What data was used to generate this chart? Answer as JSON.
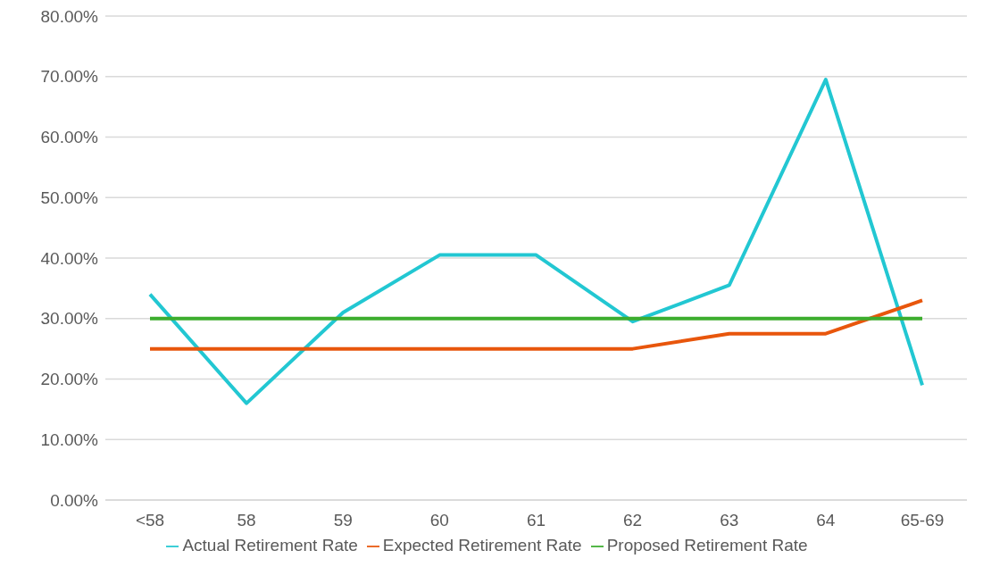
{
  "chart_data": {
    "type": "line",
    "categories": [
      "<58",
      "58",
      "59",
      "60",
      "61",
      "62",
      "63",
      "64",
      "65-69"
    ],
    "series": [
      {
        "name": "Actual Retirement Rate",
        "color": "#22c7d2",
        "values": [
          34,
          16,
          31,
          40.5,
          40.5,
          29.5,
          35.5,
          69.5,
          19
        ]
      },
      {
        "name": "Expected Retirement Rate",
        "color": "#e8560c",
        "values": [
          25,
          25,
          25,
          25,
          25,
          25,
          27.5,
          27.5,
          33
        ]
      },
      {
        "name": "Proposed Retirement Rate",
        "color": "#3cad2e",
        "values": [
          30,
          30,
          30,
          30,
          30,
          30,
          30,
          30,
          30
        ]
      }
    ],
    "ylim": [
      0,
      80
    ],
    "yticks": [
      {
        "value": 0,
        "label": "0.00%"
      },
      {
        "value": 10,
        "label": "10.00%"
      },
      {
        "value": 20,
        "label": "20.00%"
      },
      {
        "value": 30,
        "label": "30.00%"
      },
      {
        "value": 40,
        "label": "40.00%"
      },
      {
        "value": 50,
        "label": "50.00%"
      },
      {
        "value": 60,
        "label": "60.00%"
      },
      {
        "value": 70,
        "label": "70.00%"
      },
      {
        "value": 80,
        "label": "80.00%"
      }
    ],
    "grid": "y",
    "legend": "bottom",
    "marker": "none",
    "line_style": "solid"
  }
}
